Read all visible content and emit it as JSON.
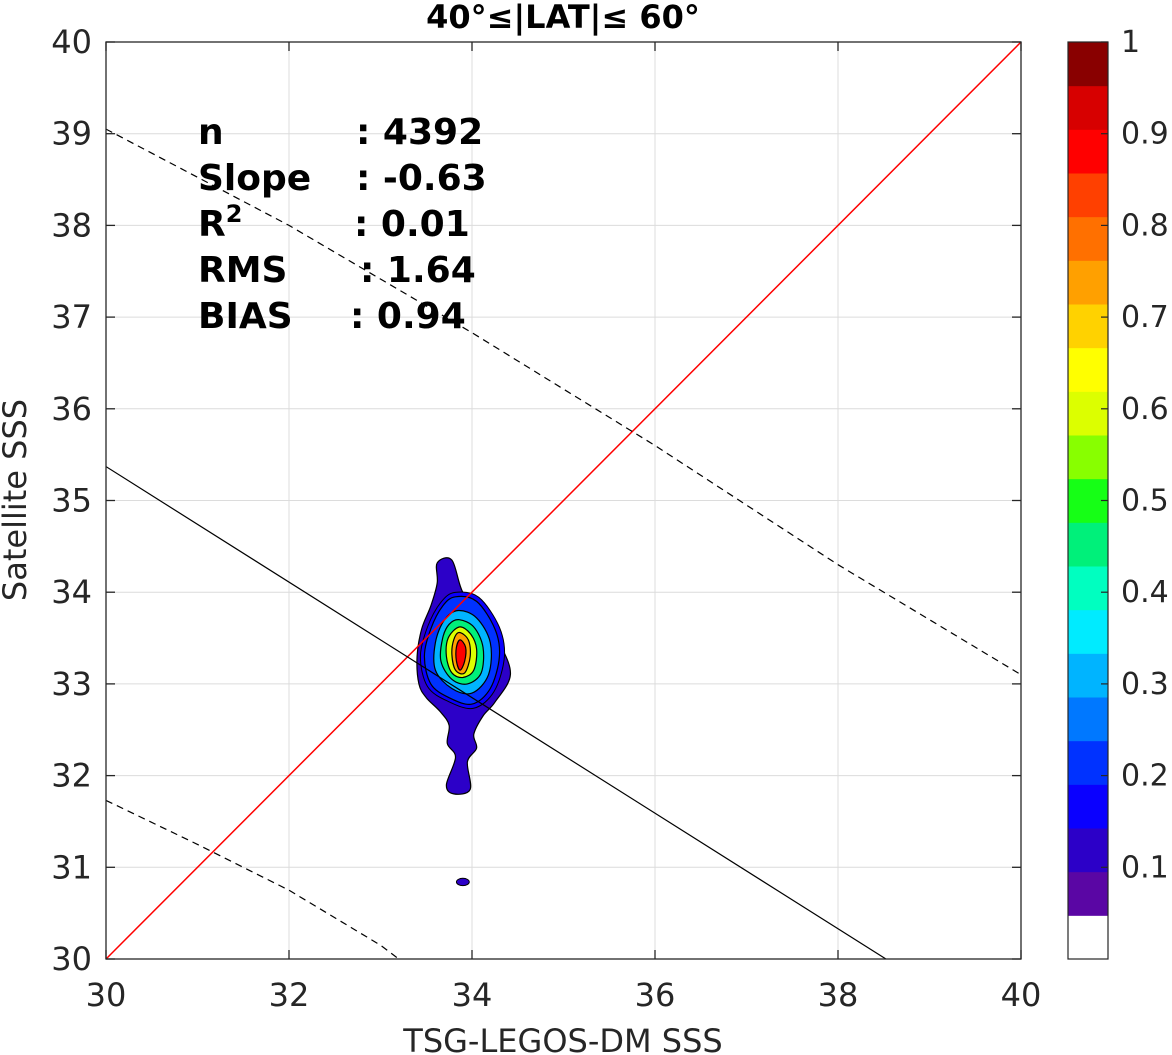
{
  "chart_data": {
    "type": "heatmap",
    "title_parts": [
      "40°",
      "≤",
      "|LAT|",
      "≤ 60°"
    ],
    "xlabel": "TSG-LEGOS-DM SSS",
    "ylabel": "Satellite SSS",
    "xlim": [
      30,
      40
    ],
    "ylim": [
      30,
      40
    ],
    "xticks": [
      30,
      32,
      34,
      36,
      38,
      40
    ],
    "yticks": [
      30,
      31,
      32,
      33,
      34,
      35,
      36,
      37,
      38,
      39,
      40
    ],
    "grid": true,
    "stats": [
      {
        "label": "n",
        "value": ": 4392"
      },
      {
        "label": "Slope",
        "value": ": -0.63"
      },
      {
        "label": "R",
        "sup": "2",
        "value": ": 0.01"
      },
      {
        "label": "RMS",
        "value": ": 1.64"
      },
      {
        "label": "BIAS",
        "value": ": 0.94"
      }
    ],
    "lines": {
      "one_to_one": {
        "color": "#ff0000",
        "slope": 1,
        "intercept": 0
      },
      "regression": {
        "color": "#000000",
        "slope": -0.63,
        "intercept": 54.27
      },
      "confidence_upper": {
        "color": "#000000",
        "dashed": true,
        "points": [
          [
            30,
            39.05
          ],
          [
            32,
            38.0
          ],
          [
            34,
            36.83
          ],
          [
            36,
            35.6
          ],
          [
            38,
            34.3
          ],
          [
            40,
            33.1
          ]
        ]
      },
      "confidence_lower": {
        "color": "#000000",
        "dashed": true,
        "points": [
          [
            30,
            31.73
          ],
          [
            31,
            31.25
          ],
          [
            32,
            30.75
          ],
          [
            33,
            30.15
          ],
          [
            33.2,
            30.0
          ]
        ]
      }
    },
    "density_center": [
      33.85,
      33.35
    ],
    "density_levels": [
      {
        "level": 0.1,
        "points": [
          [
            33.62,
            34.32
          ],
          [
            33.78,
            34.35
          ],
          [
            33.9,
            34.0
          ],
          [
            34.1,
            33.8
          ],
          [
            34.3,
            33.45
          ],
          [
            34.42,
            33.1
          ],
          [
            34.25,
            32.8
          ],
          [
            34.12,
            32.65
          ],
          [
            34.02,
            32.45
          ],
          [
            34.05,
            32.3
          ],
          [
            33.95,
            32.15
          ],
          [
            33.98,
            31.85
          ],
          [
            33.8,
            31.8
          ],
          [
            33.72,
            31.9
          ],
          [
            33.82,
            32.2
          ],
          [
            33.73,
            32.35
          ],
          [
            33.75,
            32.55
          ],
          [
            33.65,
            32.7
          ],
          [
            33.5,
            32.85
          ],
          [
            33.42,
            33.0
          ],
          [
            33.4,
            33.3
          ],
          [
            33.45,
            33.6
          ],
          [
            33.55,
            33.85
          ],
          [
            33.62,
            34.1
          ]
        ]
      },
      {
        "level": 0.15,
        "points": [
          [
            33.92,
            34.5
          ],
          [
            34.0,
            34.0
          ]
        ]
      },
      {
        "level": 0.2,
        "points": [
          [
            33.82,
            33.95
          ],
          [
            34.05,
            33.9
          ],
          [
            34.25,
            33.6
          ],
          [
            34.3,
            33.3
          ],
          [
            34.2,
            32.95
          ],
          [
            34.0,
            32.78
          ],
          [
            33.75,
            32.85
          ],
          [
            33.55,
            33.0
          ],
          [
            33.48,
            33.3
          ],
          [
            33.55,
            33.6
          ],
          [
            33.68,
            33.85
          ]
        ]
      },
      {
        "level": 0.3,
        "points": [
          [
            33.85,
            33.8
          ],
          [
            34.05,
            33.72
          ],
          [
            34.2,
            33.45
          ],
          [
            34.18,
            33.1
          ],
          [
            34.0,
            32.9
          ],
          [
            33.78,
            32.95
          ],
          [
            33.6,
            33.15
          ],
          [
            33.6,
            33.45
          ],
          [
            33.7,
            33.7
          ]
        ]
      },
      {
        "level": 0.45,
        "points": [
          [
            33.86,
            33.7
          ],
          [
            34.02,
            33.62
          ],
          [
            34.12,
            33.4
          ],
          [
            34.1,
            33.12
          ],
          [
            33.95,
            33.0
          ],
          [
            33.78,
            33.05
          ],
          [
            33.66,
            33.25
          ],
          [
            33.68,
            33.5
          ],
          [
            33.75,
            33.65
          ]
        ]
      },
      {
        "level": 0.6,
        "points": [
          [
            33.86,
            33.62
          ],
          [
            33.98,
            33.55
          ],
          [
            34.05,
            33.38
          ],
          [
            34.02,
            33.15
          ],
          [
            33.9,
            33.07
          ],
          [
            33.78,
            33.12
          ],
          [
            33.72,
            33.3
          ],
          [
            33.74,
            33.5
          ]
        ]
      },
      {
        "level": 0.75,
        "points": [
          [
            33.86,
            33.56
          ],
          [
            33.96,
            33.48
          ],
          [
            33.98,
            33.3
          ],
          [
            33.92,
            33.12
          ],
          [
            33.82,
            33.15
          ],
          [
            33.78,
            33.32
          ],
          [
            33.8,
            33.48
          ]
        ]
      },
      {
        "level": 0.9,
        "points": [
          [
            33.87,
            33.48
          ],
          [
            33.93,
            33.4
          ],
          [
            33.92,
            33.25
          ],
          [
            33.87,
            33.15
          ],
          [
            33.83,
            33.25
          ],
          [
            33.83,
            33.4
          ]
        ]
      }
    ],
    "small_blob": {
      "level": 0.1,
      "center": [
        33.9,
        30.84
      ],
      "rx": 0.07,
      "ry": 0.04
    },
    "colorbar": {
      "ticks": [
        0.1,
        0.2,
        0.3,
        0.4,
        0.5,
        0.6,
        0.7,
        0.8,
        0.9,
        1
      ],
      "tick_labels": [
        "0.1",
        "0.2",
        "0.3",
        "0.4",
        "0.5",
        "0.6",
        "0.7",
        "0.8",
        "0.9",
        "1"
      ],
      "range": [
        0,
        1
      ],
      "colors": [
        "#ffffff",
        "#5a06a4",
        "#2c00c8",
        "#0a00ff",
        "#0032ff",
        "#0078ff",
        "#00b4ff",
        "#00ebff",
        "#00ffc0",
        "#00f07a",
        "#16ff16",
        "#88ff00",
        "#dcff00",
        "#ffff00",
        "#ffd200",
        "#ffa000",
        "#ff7000",
        "#ff4000",
        "#ff0000",
        "#d70000",
        "#890000"
      ]
    }
  }
}
